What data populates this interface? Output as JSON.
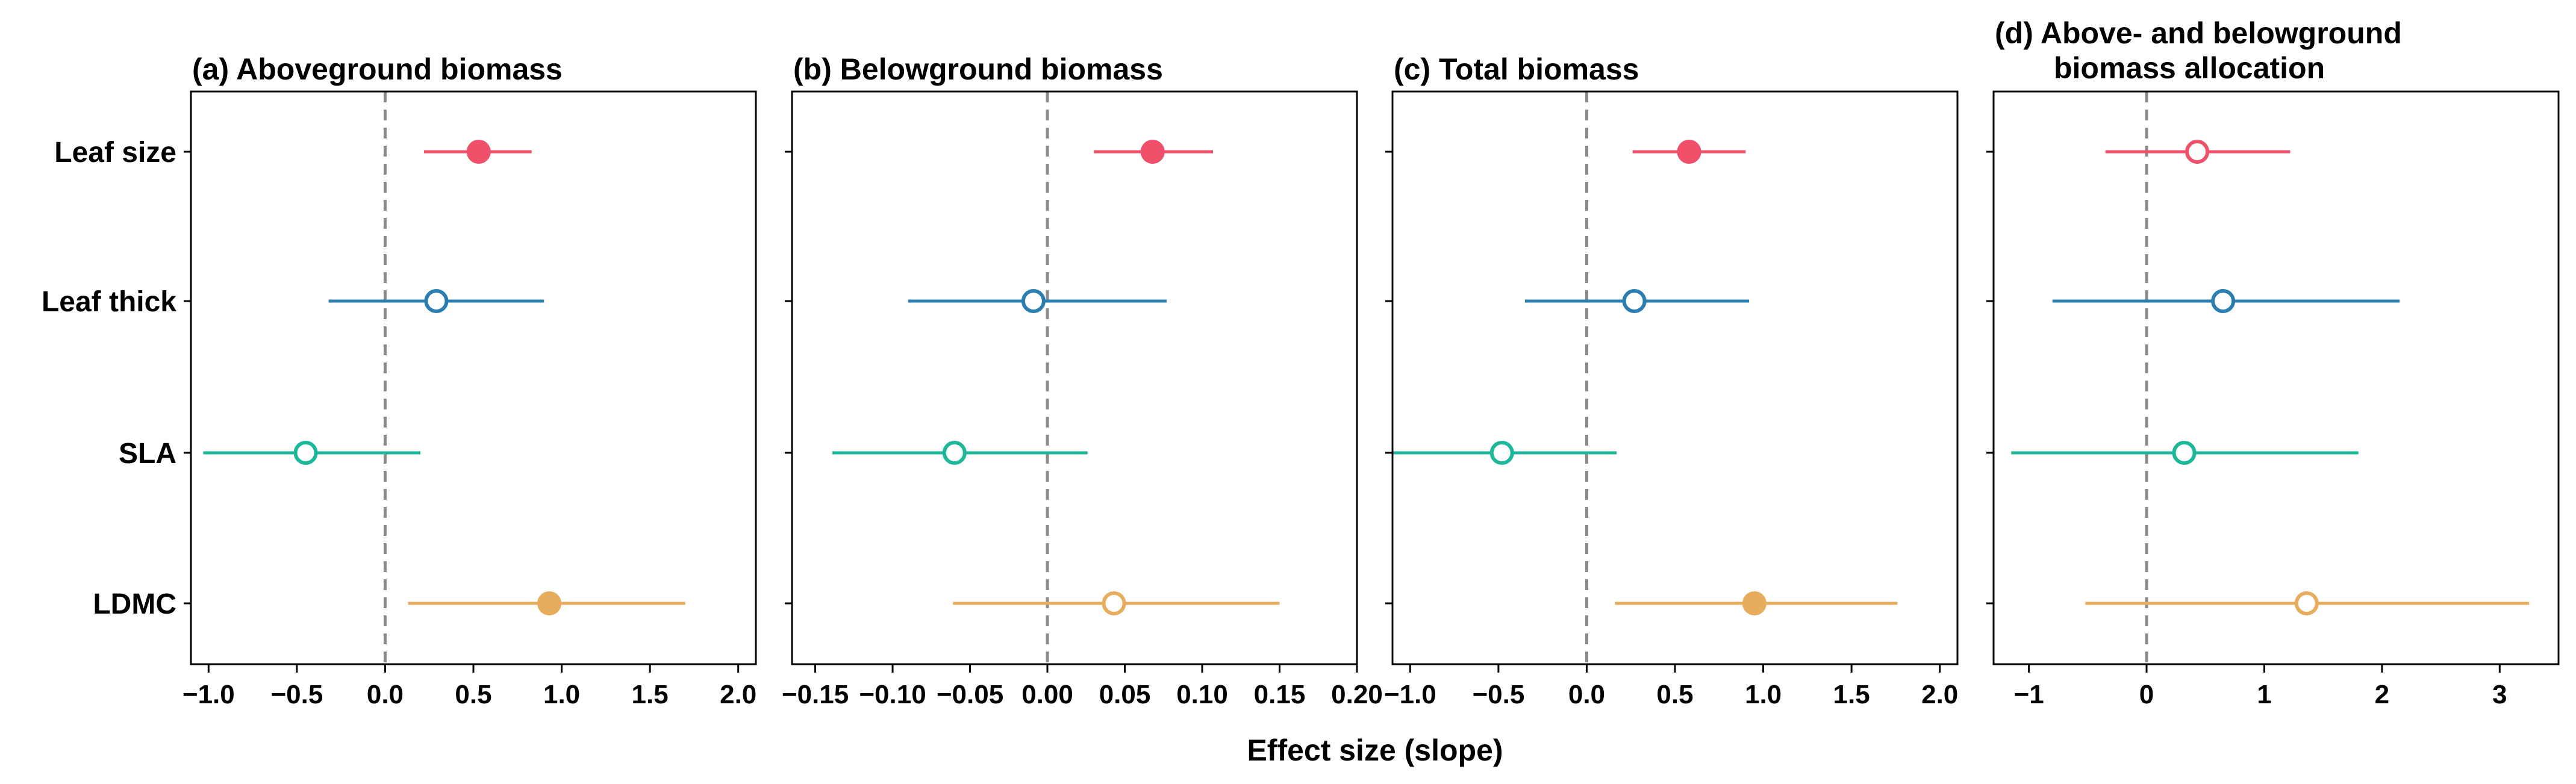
{
  "figure": {
    "xlabel": "Effect size (slope)"
  },
  "categories": [
    "Leaf size",
    "Leaf thick",
    "SLA",
    "LDMC"
  ],
  "colors": {
    "Leaf size": "#F0506A",
    "Leaf thick": "#2A7FB0",
    "SLA": "#1DB89A",
    "LDMC": "#E8AD5C"
  },
  "chart_data": [
    {
      "type": "scatter",
      "subtype": "forest-plot",
      "title": "(a) Aboveground biomass",
      "xlabel": "Effect size (slope)",
      "xlim": [
        -1.1,
        2.1
      ],
      "xticks": [
        -1.0,
        -0.5,
        0.0,
        0.5,
        1.0,
        1.5,
        2.0
      ],
      "tick_labels": [
        "−1.0",
        "−0.5",
        "0.0",
        "0.5",
        "1.0",
        "1.5",
        "2.0"
      ],
      "reference_line": 0,
      "points": [
        {
          "category": "Leaf size",
          "estimate": 0.53,
          "ci_low": 0.22,
          "ci_high": 0.83,
          "significant": true
        },
        {
          "category": "Leaf thick",
          "estimate": 0.29,
          "ci_low": -0.32,
          "ci_high": 0.9,
          "significant": false
        },
        {
          "category": "SLA",
          "estimate": -0.45,
          "ci_low": -1.03,
          "ci_high": 0.2,
          "significant": false
        },
        {
          "category": "LDMC",
          "estimate": 0.93,
          "ci_low": 0.13,
          "ci_high": 1.7,
          "significant": true
        }
      ]
    },
    {
      "type": "scatter",
      "subtype": "forest-plot",
      "title": "(b) Belowground biomass",
      "xlabel": "Effect size (slope)",
      "xlim": [
        -0.165,
        0.2
      ],
      "xticks": [
        -0.15,
        -0.1,
        -0.05,
        0.0,
        0.05,
        0.1,
        0.15,
        0.2
      ],
      "tick_labels": [
        "−0.15",
        "−0.10",
        "−0.05",
        "0.00",
        "0.05",
        "0.10",
        "0.15",
        "0.20"
      ],
      "reference_line": 0,
      "points": [
        {
          "category": "Leaf size",
          "estimate": 0.068,
          "ci_low": 0.03,
          "ci_high": 0.107,
          "significant": true
        },
        {
          "category": "Leaf thick",
          "estimate": -0.009,
          "ci_low": -0.09,
          "ci_high": 0.077,
          "significant": false
        },
        {
          "category": "SLA",
          "estimate": -0.06,
          "ci_low": -0.139,
          "ci_high": 0.026,
          "significant": false
        },
        {
          "category": "LDMC",
          "estimate": 0.043,
          "ci_low": -0.061,
          "ci_high": 0.15,
          "significant": false
        }
      ]
    },
    {
      "type": "scatter",
      "subtype": "forest-plot",
      "title": "(c) Total biomass",
      "xlabel": "Effect size (slope)",
      "xlim": [
        -1.1,
        2.1
      ],
      "xticks": [
        -1.0,
        -0.5,
        0.0,
        0.5,
        1.0,
        1.5,
        2.0
      ],
      "tick_labels": [
        "−1.0",
        "−0.5",
        "0.0",
        "0.5",
        "1.0",
        "1.5",
        "2.0"
      ],
      "reference_line": 0,
      "points": [
        {
          "category": "Leaf size",
          "estimate": 0.58,
          "ci_low": 0.26,
          "ci_high": 0.9,
          "significant": true
        },
        {
          "category": "Leaf thick",
          "estimate": 0.27,
          "ci_low": -0.35,
          "ci_high": 0.92,
          "significant": false
        },
        {
          "category": "SLA",
          "estimate": -0.48,
          "ci_low": -1.1,
          "ci_high": 0.17,
          "significant": false
        },
        {
          "category": "LDMC",
          "estimate": 0.95,
          "ci_low": 0.16,
          "ci_high": 1.76,
          "significant": true
        }
      ]
    },
    {
      "type": "scatter",
      "subtype": "forest-plot",
      "title": "(d) Above- and belowground biomass allocation",
      "title_lines": [
        "(d) Above- and belowground",
        "biomass allocation"
      ],
      "xlabel": "Effect size (slope)",
      "xlim": [
        -1.3,
        3.5
      ],
      "xticks": [
        -1,
        0,
        1,
        2,
        3
      ],
      "tick_labels": [
        "−1",
        "0",
        "1",
        "2",
        "3"
      ],
      "reference_line": 0,
      "points": [
        {
          "category": "Leaf size",
          "estimate": 0.43,
          "ci_low": -0.35,
          "ci_high": 1.22,
          "significant": false
        },
        {
          "category": "Leaf thick",
          "estimate": 0.65,
          "ci_low": -0.8,
          "ci_high": 2.15,
          "significant": false
        },
        {
          "category": "SLA",
          "estimate": 0.32,
          "ci_low": -1.15,
          "ci_high": 1.8,
          "significant": false
        },
        {
          "category": "LDMC",
          "estimate": 1.36,
          "ci_low": -0.52,
          "ci_high": 3.25,
          "significant": false
        }
      ]
    }
  ]
}
